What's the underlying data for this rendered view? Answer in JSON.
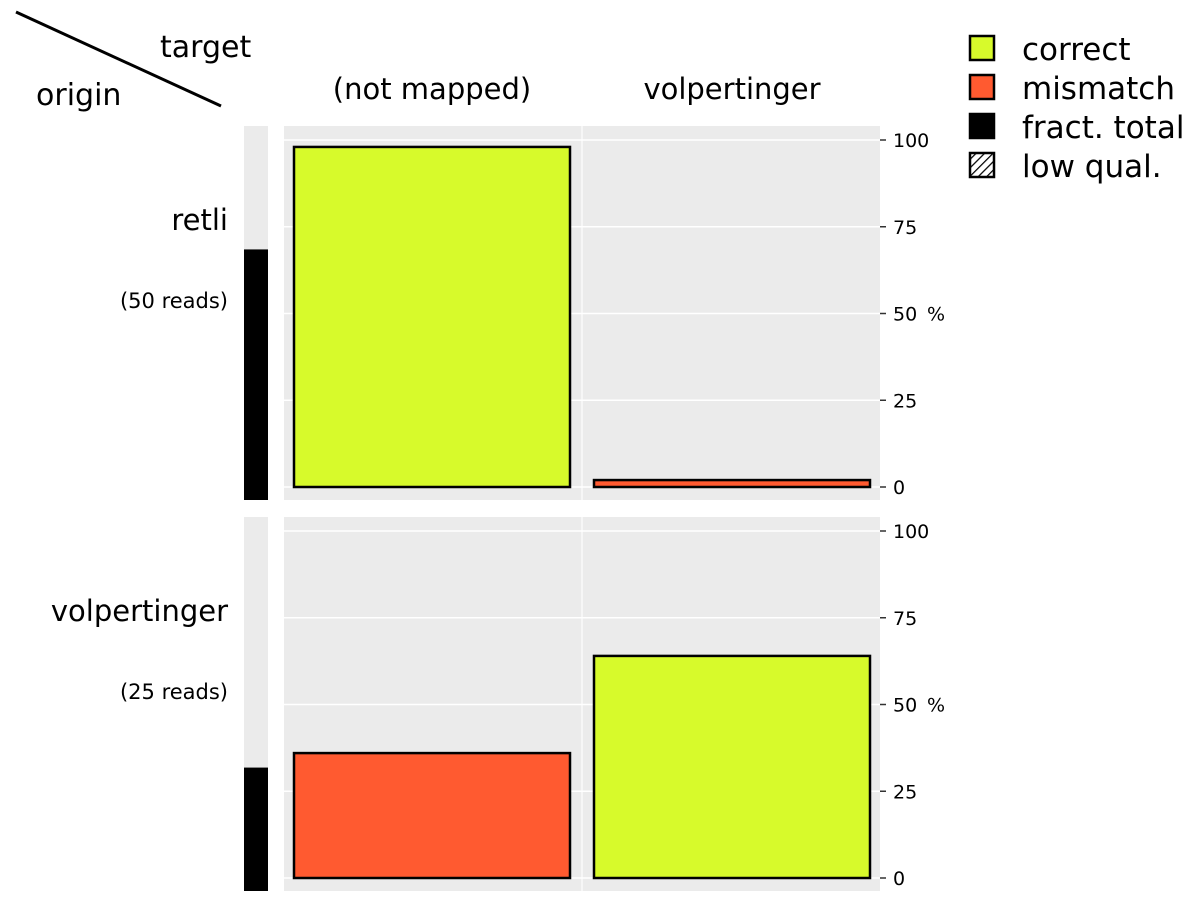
{
  "chart_data": {
    "type": "bar",
    "corner": {
      "target_label": "target",
      "origin_label": "origin"
    },
    "columns": [
      "(not mapped)",
      "volpertinger"
    ],
    "rows": [
      {
        "name": "retli",
        "reads_label": "(50 reads)",
        "fraction_total": 0.67,
        "bars": [
          {
            "column": "(not mapped)",
            "value": 98,
            "category": "correct"
          },
          {
            "column": "volpertinger",
            "value": 2,
            "category": "mismatch"
          }
        ]
      },
      {
        "name": "volpertinger",
        "reads_label": "(25 reads)",
        "fraction_total": 0.33,
        "bars": [
          {
            "column": "(not mapped)",
            "value": 36,
            "category": "mismatch"
          },
          {
            "column": "volpertinger",
            "value": 64,
            "category": "correct"
          }
        ]
      }
    ],
    "yaxis": {
      "ticks": [
        0,
        25,
        50,
        75,
        100
      ],
      "unit": "%",
      "ylim": [
        0,
        104
      ]
    },
    "legend": {
      "placement": "top-right",
      "items": [
        {
          "name": "correct",
          "color": "#d7fa2b",
          "pattern": "solid"
        },
        {
          "name": "mismatch",
          "color": "#ff5a30",
          "pattern": "solid"
        },
        {
          "name": "fract. total",
          "color": "#000000",
          "pattern": "solid"
        },
        {
          "name": "low qual.",
          "color": "#ffffff",
          "pattern": "hatch"
        }
      ]
    },
    "panel_background": "#ebebeb",
    "gridlines": true
  }
}
